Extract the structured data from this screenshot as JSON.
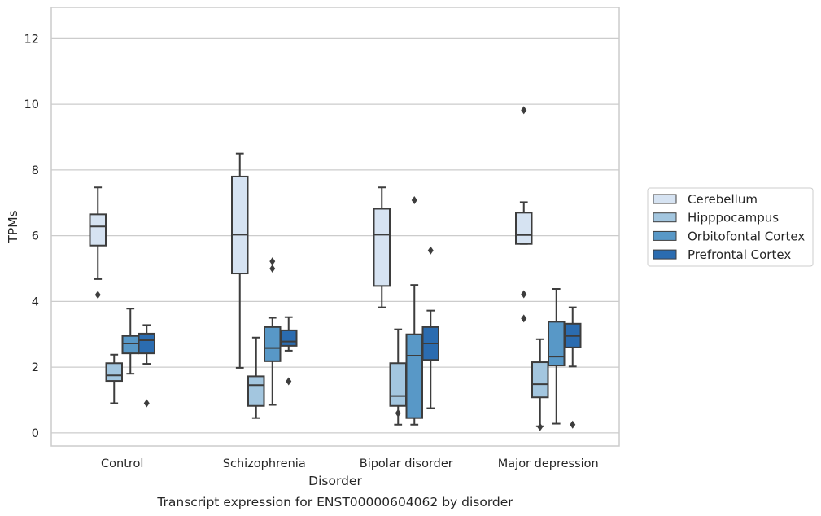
{
  "chart_data": {
    "type": "box",
    "title": "",
    "caption": "Transcript expression for ENST00000604062 by disorder",
    "xlabel": "Disorder",
    "ylabel": "TPMs",
    "ylim": [
      -0.4,
      12.95
    ],
    "yticks": [
      0,
      2,
      4,
      6,
      8,
      10,
      12
    ],
    "grid": "horizontal",
    "legend_position": "right",
    "categories": [
      "Control",
      "Schizophrenia",
      "Bipolar disorder",
      "Major depression"
    ],
    "series": [
      {
        "name": "Cerebellum",
        "color": "#d6e3f2",
        "boxes": [
          {
            "whisker_low": 4.68,
            "q1": 5.7,
            "median": 6.28,
            "q3": 6.65,
            "whisker_high": 7.47,
            "outliers": [
              4.2
            ]
          },
          {
            "whisker_low": 1.98,
            "q1": 4.85,
            "median": 6.03,
            "q3": 7.8,
            "whisker_high": 8.5,
            "outliers": []
          },
          {
            "whisker_low": 3.82,
            "q1": 4.47,
            "median": 6.03,
            "q3": 6.82,
            "whisker_high": 7.47,
            "outliers": []
          },
          {
            "whisker_low": 5.75,
            "q1": 5.75,
            "median": 6.02,
            "q3": 6.7,
            "whisker_high": 7.02,
            "outliers": [
              9.82,
              4.22,
              3.48
            ]
          }
        ]
      },
      {
        "name": "Hipppocampus",
        "color": "#a3c6df",
        "boxes": [
          {
            "whisker_low": 0.9,
            "q1": 1.58,
            "median": 1.75,
            "q3": 2.12,
            "whisker_high": 2.38,
            "outliers": []
          },
          {
            "whisker_low": 0.45,
            "q1": 0.82,
            "median": 1.45,
            "q3": 1.72,
            "whisker_high": 2.9,
            "outliers": []
          },
          {
            "whisker_low": 0.25,
            "q1": 0.82,
            "median": 1.12,
            "q3": 2.12,
            "whisker_high": 3.15,
            "outliers": [
              0.6
            ]
          },
          {
            "whisker_low": 0.2,
            "q1": 1.08,
            "median": 1.48,
            "q3": 2.15,
            "whisker_high": 2.85,
            "outliers": [
              0.18
            ]
          }
        ]
      },
      {
        "name": "Orbitofontal Cortex",
        "color": "#5898c7",
        "boxes": [
          {
            "whisker_low": 1.8,
            "q1": 2.42,
            "median": 2.72,
            "q3": 2.95,
            "whisker_high": 3.78,
            "outliers": []
          },
          {
            "whisker_low": 0.85,
            "q1": 2.18,
            "median": 2.58,
            "q3": 3.22,
            "whisker_high": 3.5,
            "outliers": [
              5.22,
              5.0
            ]
          },
          {
            "whisker_low": 0.25,
            "q1": 0.45,
            "median": 2.35,
            "q3": 3.0,
            "whisker_high": 4.5,
            "outliers": [
              7.08
            ]
          },
          {
            "whisker_low": 0.28,
            "q1": 2.05,
            "median": 2.32,
            "q3": 3.38,
            "whisker_high": 4.38,
            "outliers": []
          }
        ]
      },
      {
        "name": "Prefrontal Cortex",
        "color": "#2b6cb0",
        "boxes": [
          {
            "whisker_low": 2.1,
            "q1": 2.42,
            "median": 2.82,
            "q3": 3.02,
            "whisker_high": 3.28,
            "outliers": [
              0.9
            ]
          },
          {
            "whisker_low": 2.5,
            "q1": 2.65,
            "median": 2.78,
            "q3": 3.12,
            "whisker_high": 3.52,
            "outliers": [
              1.57
            ]
          },
          {
            "whisker_low": 0.75,
            "q1": 2.22,
            "median": 2.72,
            "q3": 3.22,
            "whisker_high": 3.72,
            "outliers": [
              5.55
            ]
          },
          {
            "whisker_low": 2.02,
            "q1": 2.6,
            "median": 2.95,
            "q3": 3.32,
            "whisker_high": 3.82,
            "outliers": [
              0.25
            ]
          }
        ]
      }
    ],
    "colors": {
      "grid": "#cccccc",
      "frame": "#cccccc",
      "line": "#3d3d3d",
      "text": "#262626",
      "background": "#ffffff"
    }
  }
}
